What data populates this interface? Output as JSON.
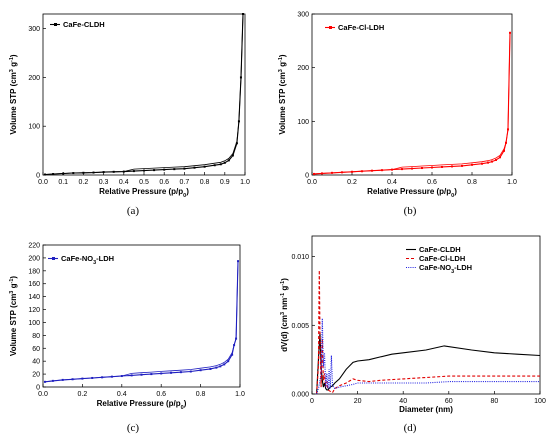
{
  "chart_data": [
    {
      "type": "line",
      "caption": "(a)",
      "xlabel": "Relative Pressure (p/p0)",
      "ylabel": "Volume STP (cm³ g⁻¹)",
      "xlim": [
        0.0,
        1.0
      ],
      "ylim": [
        0,
        330
      ],
      "xticks": [
        "0.0",
        "0.1",
        "0.2",
        "0.3",
        "0.4",
        "0.5",
        "0.6",
        "0.7",
        "0.8",
        "0.9",
        "1.0"
      ],
      "yticks": [
        "0",
        "100",
        "200",
        "300"
      ],
      "legend_position": "top-left",
      "series": [
        {
          "name": "CaFe-CLDH",
          "color": "#000000",
          "style": "solid-square-markers",
          "x": [
            0.01,
            0.05,
            0.1,
            0.15,
            0.2,
            0.25,
            0.3,
            0.35,
            0.4,
            0.45,
            0.5,
            0.55,
            0.6,
            0.65,
            0.7,
            0.75,
            0.8,
            0.85,
            0.88,
            0.9,
            0.92,
            0.94,
            0.96,
            0.97,
            0.98,
            0.99
          ],
          "y": [
            1,
            2,
            3,
            4,
            4.5,
            5,
            6,
            6.5,
            7,
            8,
            9,
            10,
            11,
            12,
            13,
            15,
            17,
            20,
            22,
            25,
            30,
            40,
            65,
            110,
            200,
            330
          ]
        }
      ]
    },
    {
      "type": "line",
      "caption": "(b)",
      "xlabel": "Relative Pressure (p/p0)",
      "ylabel": "Volume STP (cm³ g⁻¹)",
      "xlim": [
        0.0,
        1.0
      ],
      "ylim": [
        0,
        300
      ],
      "xticks": [
        "0.0",
        "0.2",
        "0.4",
        "0.6",
        "0.8",
        "1.0"
      ],
      "yticks": [
        "0",
        "100",
        "200",
        "300"
      ],
      "legend_position": "top-left",
      "series": [
        {
          "name": "CaFe-Cl-LDH",
          "color": "#ff0000",
          "style": "solid-square-markers",
          "x": [
            0.01,
            0.05,
            0.1,
            0.15,
            0.2,
            0.25,
            0.3,
            0.35,
            0.4,
            0.45,
            0.5,
            0.55,
            0.6,
            0.65,
            0.7,
            0.75,
            0.8,
            0.85,
            0.88,
            0.9,
            0.92,
            0.94,
            0.96,
            0.97,
            0.98,
            0.99
          ],
          "y": [
            2,
            3,
            4,
            5,
            6,
            7,
            8,
            9,
            10,
            11,
            12,
            13,
            14,
            15,
            16,
            17,
            19,
            21,
            23,
            25,
            28,
            33,
            45,
            60,
            85,
            265
          ]
        }
      ]
    },
    {
      "type": "line",
      "caption": "(c)",
      "xlabel": "Relative Pressure (p/p0)",
      "ylabel": "Volume STP (cm³ g⁻¹)",
      "xlim": [
        0.0,
        1.0
      ],
      "ylim": [
        0,
        220
      ],
      "xticks": [
        "0.0",
        "0.2",
        "0.4",
        "0.6",
        "0.8",
        "1.0"
      ],
      "yticks": [
        "0",
        "20",
        "40",
        "60",
        "80",
        "100",
        "120",
        "140",
        "160",
        "180",
        "200",
        "220"
      ],
      "legend_position": "top-left",
      "series": [
        {
          "name": "CaFe-NO3-LDH",
          "color": "#2020c0",
          "style": "solid-square-markers",
          "x": [
            0.01,
            0.05,
            0.1,
            0.15,
            0.2,
            0.25,
            0.3,
            0.35,
            0.4,
            0.45,
            0.5,
            0.55,
            0.6,
            0.65,
            0.7,
            0.75,
            0.8,
            0.85,
            0.88,
            0.9,
            0.92,
            0.94,
            0.96,
            0.97,
            0.98,
            0.99
          ],
          "y": [
            8,
            9.5,
            11,
            12,
            13,
            14,
            15,
            16,
            17,
            18,
            19,
            20,
            21,
            22,
            23,
            24,
            26,
            28,
            30,
            32,
            35,
            40,
            50,
            65,
            75,
            195
          ]
        }
      ]
    },
    {
      "type": "line",
      "caption": "(d)",
      "xlabel": "Diameter (nm)",
      "ylabel": "dV(d) (cm³ nm⁻¹ g⁻¹)",
      "xlim": [
        0,
        100
      ],
      "ylim": [
        0,
        0.0115
      ],
      "xticks": [
        "0",
        "20",
        "40",
        "60",
        "80",
        "100"
      ],
      "yticks": [
        "0.000",
        "0.005",
        "0.010"
      ],
      "legend_position": "top-right",
      "series": [
        {
          "name": "CaFe-CLDH",
          "color": "#000000",
          "style": "solid",
          "x": [
            2,
            3,
            3.5,
            4,
            4.5,
            5,
            5.5,
            6,
            6.5,
            7,
            8,
            9,
            10,
            12,
            15,
            18,
            20,
            25,
            30,
            35,
            40,
            50,
            58,
            70,
            80,
            90,
            100
          ],
          "y": [
            0,
            0.003,
            0.0045,
            0.002,
            0.001,
            0.0005,
            0.0008,
            0.0004,
            0.0003,
            0.0003,
            0.0005,
            0.0006,
            0.0008,
            0.0011,
            0.0018,
            0.0023,
            0.0024,
            0.0025,
            0.0027,
            0.0029,
            0.003,
            0.0032,
            0.0035,
            0.0032,
            0.003,
            0.0029,
            0.0028
          ]
        },
        {
          "name": "CaFe-Cl-LDH",
          "color": "#e00000",
          "style": "dashed",
          "x": [
            2,
            2.8,
            3.2,
            3.6,
            4,
            4.5,
            5,
            5.5,
            6,
            6.5,
            7,
            8,
            9,
            10,
            12,
            15,
            18,
            20,
            25,
            30,
            40,
            50,
            60,
            70,
            80,
            90,
            100
          ],
          "y": [
            0,
            0.002,
            0.009,
            0.003,
            0.0005,
            0.004,
            0.001,
            0.0015,
            0.0005,
            0.0009,
            0.0003,
            0.0002,
            0.0001,
            0.0004,
            0.0006,
            0.0008,
            0.0011,
            0.001,
            0.0009,
            0.001,
            0.0011,
            0.0012,
            0.0013,
            0.0013,
            0.0013,
            0.0013,
            0.0013
          ]
        },
        {
          "name": "CaFe-NO3-LDH",
          "color": "#2020e0",
          "style": "dotted",
          "x": [
            2,
            3,
            3.5,
            4,
            4.5,
            5,
            5.5,
            6,
            6.5,
            7,
            7.5,
            8,
            8.5,
            9,
            10,
            12,
            15,
            18,
            20,
            25,
            30,
            40,
            50,
            60,
            70,
            80,
            90,
            100
          ],
          "y": [
            0,
            0.0005,
            0.001,
            0.0015,
            0.0055,
            0.002,
            0.003,
            0.0005,
            0.0015,
            0.0004,
            0.0018,
            0.0004,
            0.0028,
            0.0006,
            0.0004,
            0.0005,
            0.0006,
            0.0007,
            0.0008,
            0.0008,
            0.0008,
            0.0008,
            0.0008,
            0.0009,
            0.0009,
            0.0009,
            0.0009,
            0.0009
          ]
        }
      ]
    }
  ]
}
